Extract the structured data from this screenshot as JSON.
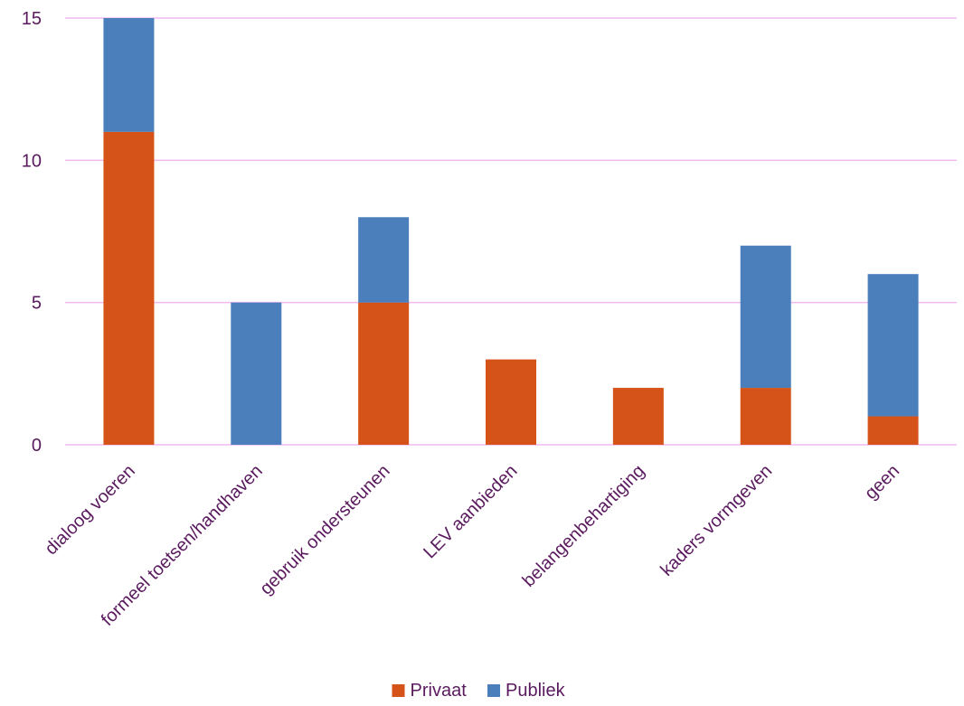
{
  "chart_data": {
    "type": "bar",
    "stacked": true,
    "categories": [
      "dialoog voeren",
      "formeel toetsen/handhaven",
      "gebruik ondersteunen",
      "LEV aanbieden",
      "belangenbehartiging",
      "kaders vormgeven",
      "geen"
    ],
    "series": [
      {
        "name": "Privaat",
        "color": "#d55318",
        "values": [
          11,
          0,
          5,
          3,
          2,
          2,
          1
        ]
      },
      {
        "name": "Publiek",
        "color": "#4a7fbc",
        "values": [
          4,
          5,
          3,
          0,
          0,
          5,
          5
        ]
      }
    ],
    "ylim": [
      0,
      15
    ],
    "yticks": [
      0,
      5,
      10,
      15
    ],
    "grid": true,
    "legend_position": "bottom"
  }
}
